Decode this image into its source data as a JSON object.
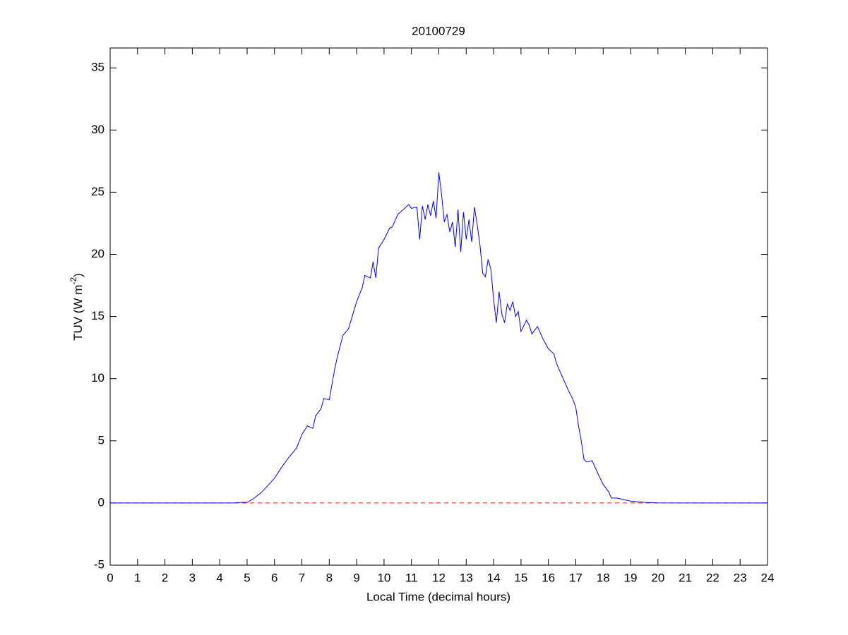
{
  "chart_data": {
    "type": "line",
    "title": "20100729",
    "xlabel": "Local Time (decimal hours)",
    "ylabel": [
      "TUV (W m",
      "-2",
      ")"
    ],
    "x": [
      0,
      4.5,
      4.8,
      5,
      5.2,
      5.5,
      5.8,
      6,
      6.3,
      6.5,
      6.8,
      7,
      7.2,
      7.4,
      7.5,
      7.7,
      7.8,
      8,
      8.2,
      8.3,
      8.5,
      8.7,
      9,
      9.2,
      9.3,
      9.5,
      9.6,
      9.7,
      9.8,
      10,
      10.2,
      10.3,
      10.5,
      10.7,
      10.9,
      11,
      11.2,
      11.3,
      11.4,
      11.5,
      11.6,
      11.7,
      11.8,
      11.9,
      12,
      12.1,
      12.2,
      12.3,
      12.4,
      12.5,
      12.6,
      12.7,
      12.8,
      12.9,
      13,
      13.1,
      13.2,
      13.3,
      13.4,
      13.5,
      13.6,
      13.7,
      13.8,
      13.9,
      14,
      14.1,
      14.2,
      14.3,
      14.4,
      14.5,
      14.6,
      14.7,
      14.8,
      14.9,
      15,
      15.2,
      15.3,
      15.4,
      15.6,
      15.8,
      16,
      16.2,
      16.3,
      16.5,
      16.7,
      16.9,
      17,
      17.1,
      17.2,
      17.3,
      17.4,
      17.6,
      17.8,
      18,
      18.2,
      18.3,
      18.5,
      18.7,
      19,
      19.5,
      20,
      24
    ],
    "series": [
      {
        "name": "TUV",
        "color": "#0000ff",
        "values": [
          0,
          0,
          0.05,
          0.05,
          0.3,
          0.8,
          1.5,
          2,
          3,
          3.6,
          4.4,
          5.5,
          6.2,
          6,
          7,
          7.6,
          8.4,
          8.3,
          10.8,
          11.8,
          13.5,
          14,
          16.2,
          17.3,
          18.3,
          18.1,
          19.4,
          18.1,
          20.5,
          21.2,
          22.1,
          22.2,
          23.2,
          23.6,
          24,
          23.7,
          23.8,
          21.2,
          23.9,
          22.8,
          24,
          23.1,
          24.3,
          22.9,
          26.6,
          24.8,
          22.6,
          23.2,
          21.8,
          22.6,
          20.6,
          23.6,
          20.2,
          23.4,
          21.2,
          22.8,
          21,
          23.8,
          22.4,
          20.8,
          18.5,
          18.2,
          19.6,
          18.8,
          16.4,
          14.5,
          17,
          15.2,
          14.5,
          16,
          15.5,
          16.2,
          15,
          15.4,
          13.8,
          14.7,
          14.3,
          13.6,
          14.2,
          13.2,
          12.4,
          12,
          11.2,
          10.2,
          9.2,
          8.3,
          7.7,
          6.2,
          5,
          3.5,
          3.3,
          3.4,
          2.4,
          1.5,
          0.9,
          0.4,
          0.4,
          0.3,
          0.15,
          0.05,
          0.01,
          0
        ]
      }
    ],
    "reference_line": {
      "value": 0,
      "color": "#ff0000"
    },
    "xlim": [
      0,
      24
    ],
    "xticks": [
      0,
      1,
      2,
      3,
      4,
      5,
      6,
      7,
      8,
      9,
      10,
      11,
      12,
      13,
      14,
      15,
      16,
      17,
      18,
      19,
      20,
      21,
      22,
      23,
      24
    ],
    "ylim": [
      -5,
      36.6
    ],
    "yticks": [
      -5,
      0,
      5,
      10,
      15,
      20,
      25,
      30,
      35
    ]
  }
}
